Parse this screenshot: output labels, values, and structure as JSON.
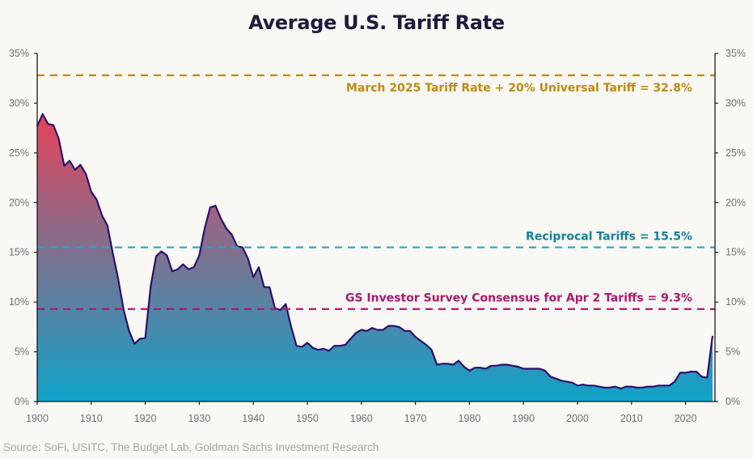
{
  "chart_data": {
    "type": "area",
    "title": "Average U.S. Tariff Rate",
    "xlabel": "",
    "ylabel": "",
    "source": "Source: SoFi, USITC, The Budget Lab, Goldman Sachs Investment Research",
    "xlim": [
      1900,
      2025.5
    ],
    "ylim": [
      0,
      35
    ],
    "grid": false,
    "x_ticks": [
      "1900",
      "1910",
      "1920",
      "1930",
      "1940",
      "1950",
      "1960",
      "1970",
      "1980",
      "1990",
      "2000",
      "2010",
      "2020"
    ],
    "x_tick_values": [
      1900,
      1910,
      1920,
      1930,
      1940,
      1950,
      1960,
      1970,
      1980,
      1990,
      2000,
      2010,
      2020
    ],
    "y_ticks": [
      "0%",
      "5%",
      "10%",
      "15%",
      "20%",
      "25%",
      "30%",
      "35%"
    ],
    "y_tick_values": [
      0,
      5,
      10,
      15,
      20,
      25,
      30,
      35
    ],
    "series": [
      {
        "name": "Average U.S. Tariff Rate",
        "x": [
          1900,
          1901,
          1902,
          1903,
          1904,
          1905,
          1906,
          1907,
          1908,
          1909,
          1910,
          1911,
          1912,
          1913,
          1914,
          1915,
          1916,
          1917,
          1918,
          1919,
          1920,
          1921,
          1922,
          1923,
          1924,
          1925,
          1926,
          1927,
          1928,
          1929,
          1930,
          1931,
          1932,
          1933,
          1934,
          1935,
          1936,
          1937,
          1938,
          1939,
          1940,
          1941,
          1942,
          1943,
          1944,
          1945,
          1946,
          1947,
          1948,
          1949,
          1950,
          1951,
          1952,
          1953,
          1954,
          1955,
          1956,
          1957,
          1958,
          1959,
          1960,
          1961,
          1962,
          1963,
          1964,
          1965,
          1966,
          1967,
          1968,
          1969,
          1970,
          1971,
          1972,
          1973,
          1974,
          1975,
          1976,
          1977,
          1978,
          1979,
          1980,
          1981,
          1982,
          1983,
          1984,
          1985,
          1986,
          1987,
          1988,
          1989,
          1990,
          1991,
          1992,
          1993,
          1994,
          1995,
          1996,
          1997,
          1998,
          1999,
          2000,
          2001,
          2002,
          2003,
          2004,
          2005,
          2006,
          2007,
          2008,
          2009,
          2010,
          2011,
          2012,
          2013,
          2014,
          2015,
          2016,
          2017,
          2018,
          2019,
          2020,
          2021,
          2022,
          2023,
          2024,
          2025
        ],
        "values": [
          27.7,
          28.9,
          27.9,
          27.8,
          26.4,
          23.7,
          24.2,
          23.3,
          23.8,
          22.9,
          21.1,
          20.3,
          18.7,
          17.7,
          14.9,
          12.3,
          9.2,
          7.1,
          5.8,
          6.3,
          6.4,
          11.6,
          14.6,
          15.1,
          14.7,
          13.1,
          13.3,
          13.8,
          13.3,
          13.5,
          14.7,
          17.4,
          19.5,
          19.7,
          18.4,
          17.4,
          16.8,
          15.6,
          15.5,
          14.4,
          12.5,
          13.5,
          11.5,
          11.5,
          9.4,
          9.2,
          9.8,
          7.5,
          5.6,
          5.5,
          5.9,
          5.4,
          5.2,
          5.3,
          5.1,
          5.6,
          5.6,
          5.7,
          6.3,
          6.9,
          7.2,
          7.1,
          7.4,
          7.2,
          7.2,
          7.6,
          7.6,
          7.5,
          7.1,
          7.1,
          6.5,
          6.1,
          5.7,
          5.2,
          3.7,
          3.8,
          3.8,
          3.7,
          4.1,
          3.5,
          3.1,
          3.4,
          3.4,
          3.3,
          3.6,
          3.6,
          3.7,
          3.7,
          3.6,
          3.5,
          3.3,
          3.3,
          3.3,
          3.3,
          3.1,
          2.5,
          2.3,
          2.1,
          2.0,
          1.9,
          1.6,
          1.7,
          1.6,
          1.6,
          1.5,
          1.4,
          1.4,
          1.5,
          1.3,
          1.5,
          1.5,
          1.4,
          1.4,
          1.5,
          1.5,
          1.6,
          1.6,
          1.6,
          2.0,
          2.9,
          2.9,
          3.0,
          3.0,
          2.5,
          2.4,
          6.6
        ],
        "line_color": "#2d0f6b",
        "fill_gradient": [
          "#e5435a",
          "#0fa3c9"
        ]
      }
    ],
    "reference_lines": [
      {
        "label": "March 2025 Tariff Rate +  20% Universal Tariff = 32.8%",
        "value": 32.8,
        "color": "#c28a12"
      },
      {
        "label": "Reciprocal Tariffs = 15.5%",
        "value": 15.5,
        "color": "#1ea7cf",
        "label_color": "#13819f"
      },
      {
        "label": "GS Investor Survey Consensus for Apr 2 Tariffs = 9.3%",
        "value": 9.3,
        "color": "#b0166b"
      }
    ]
  }
}
